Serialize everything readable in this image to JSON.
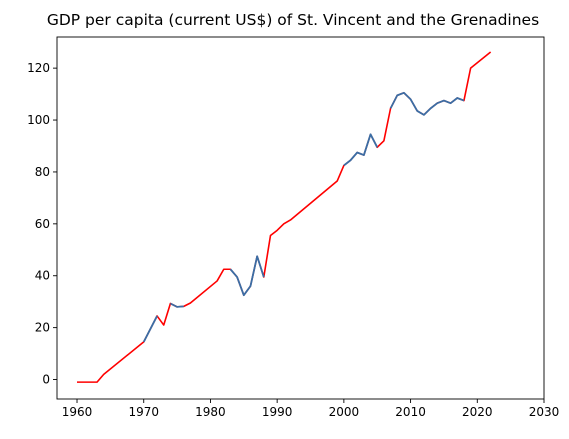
{
  "chart_data": {
    "type": "line",
    "title": "GDP per capita (current US$) of St. Vincent and the Grenadines",
    "xlabel": "",
    "ylabel": "",
    "xlim": [
      1957,
      2030
    ],
    "ylim": [
      -7.5,
      132
    ],
    "x_ticks": [
      1960,
      1970,
      1980,
      1990,
      2000,
      2010,
      2020,
      2030
    ],
    "y_ticks": [
      0,
      20,
      40,
      60,
      80,
      100,
      120
    ],
    "grid": false,
    "colors": {
      "red_line": "#ff0000",
      "blue_line": "#3a6ea5"
    },
    "series": [
      {
        "color": "#ff0000",
        "x": [
          1960,
          1963,
          1964,
          1970,
          1972,
          1973,
          1974,
          1975,
          1976,
          1977,
          1981,
          1982,
          1983,
          1984,
          1985,
          1986,
          1987,
          1988,
          1989,
          1990,
          1991,
          1992,
          1999,
          2000,
          2001,
          2002,
          2003,
          2004,
          2005,
          2006,
          2007,
          2008,
          2009,
          2010,
          2011,
          2012,
          2013,
          2014,
          2015,
          2016,
          2017,
          2018,
          2019,
          2022
        ],
        "y": [
          -1,
          -1,
          2,
          14.5,
          24.5,
          21,
          29.3,
          28,
          28.2,
          29.5,
          38,
          42.5,
          42.5,
          39.5,
          32.5,
          36,
          47.5,
          39.5,
          55.5,
          57.5,
          60,
          61.5,
          76.5,
          82.5,
          84.5,
          87.5,
          86.5,
          94.5,
          89.5,
          92,
          104.5,
          109.5,
          110.5,
          108,
          103.5,
          102,
          104.5,
          106.5,
          107.5,
          106.5,
          108.5,
          107.5,
          120,
          126.2
        ]
      },
      {
        "color": "#3a6ea5",
        "segments": [
          {
            "x": [
              1970,
              1972
            ],
            "y": [
              14.5,
              24.5
            ]
          },
          {
            "x": [
              1974,
              1975,
              1976
            ],
            "y": [
              29.3,
              28,
              28.2
            ]
          },
          {
            "x": [
              1983,
              1984,
              1985,
              1986,
              1987,
              1988
            ],
            "y": [
              42.5,
              39.5,
              32.5,
              36,
              47.5,
              39.5
            ]
          },
          {
            "x": [
              2000,
              2001,
              2002,
              2003,
              2004,
              2005
            ],
            "y": [
              82.5,
              84.5,
              87.5,
              86.5,
              94.5,
              89.5
            ]
          },
          {
            "x": [
              2007,
              2008,
              2009,
              2010,
              2011,
              2012,
              2013,
              2014,
              2015,
              2016,
              2017,
              2018
            ],
            "y": [
              104.5,
              109.5,
              110.5,
              108,
              103.5,
              102,
              104.5,
              106.5,
              107.5,
              106.5,
              108.5,
              107.5
            ]
          }
        ]
      }
    ]
  }
}
